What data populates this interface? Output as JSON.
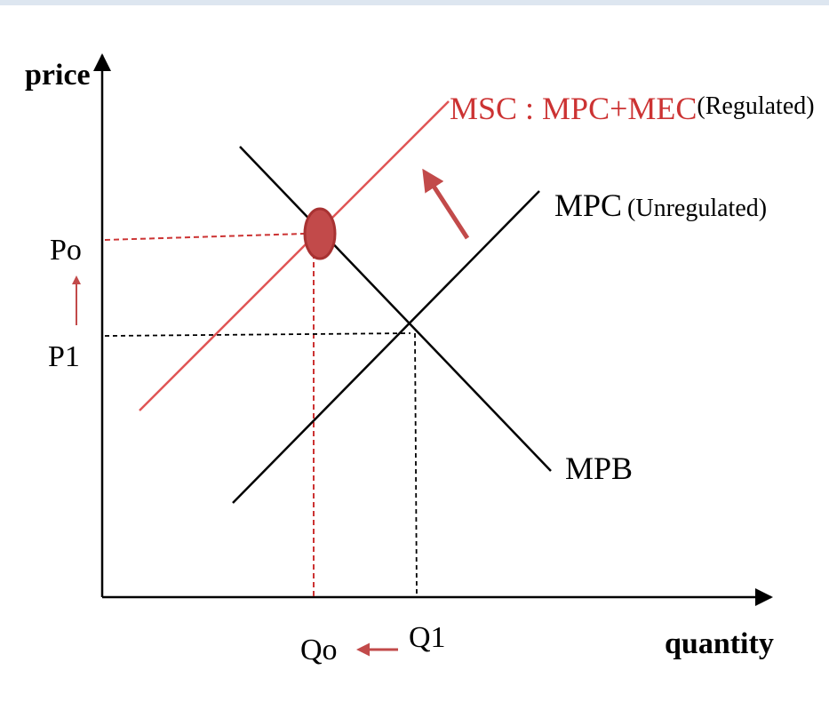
{
  "axes": {
    "y_label": "price",
    "x_label": "quantity"
  },
  "curves": {
    "msc": {
      "label": "MSC : MPC+MEC",
      "qualifier": "(Regulated)",
      "color": "#e05555"
    },
    "mpc": {
      "label": "MPC",
      "qualifier": "(Unregulated)",
      "color": "#000000"
    },
    "mpb": {
      "label": "MPB",
      "color": "#000000"
    }
  },
  "prices": {
    "p0": "Po",
    "p1": "P1"
  },
  "quantities": {
    "q0": "Qo",
    "q1": "Q1"
  },
  "colors": {
    "accent_red": "#cc3333",
    "equilibrium_dot": "#c24a4a",
    "dot_outline": "#a83232",
    "top_border": "#dde6f0"
  }
}
